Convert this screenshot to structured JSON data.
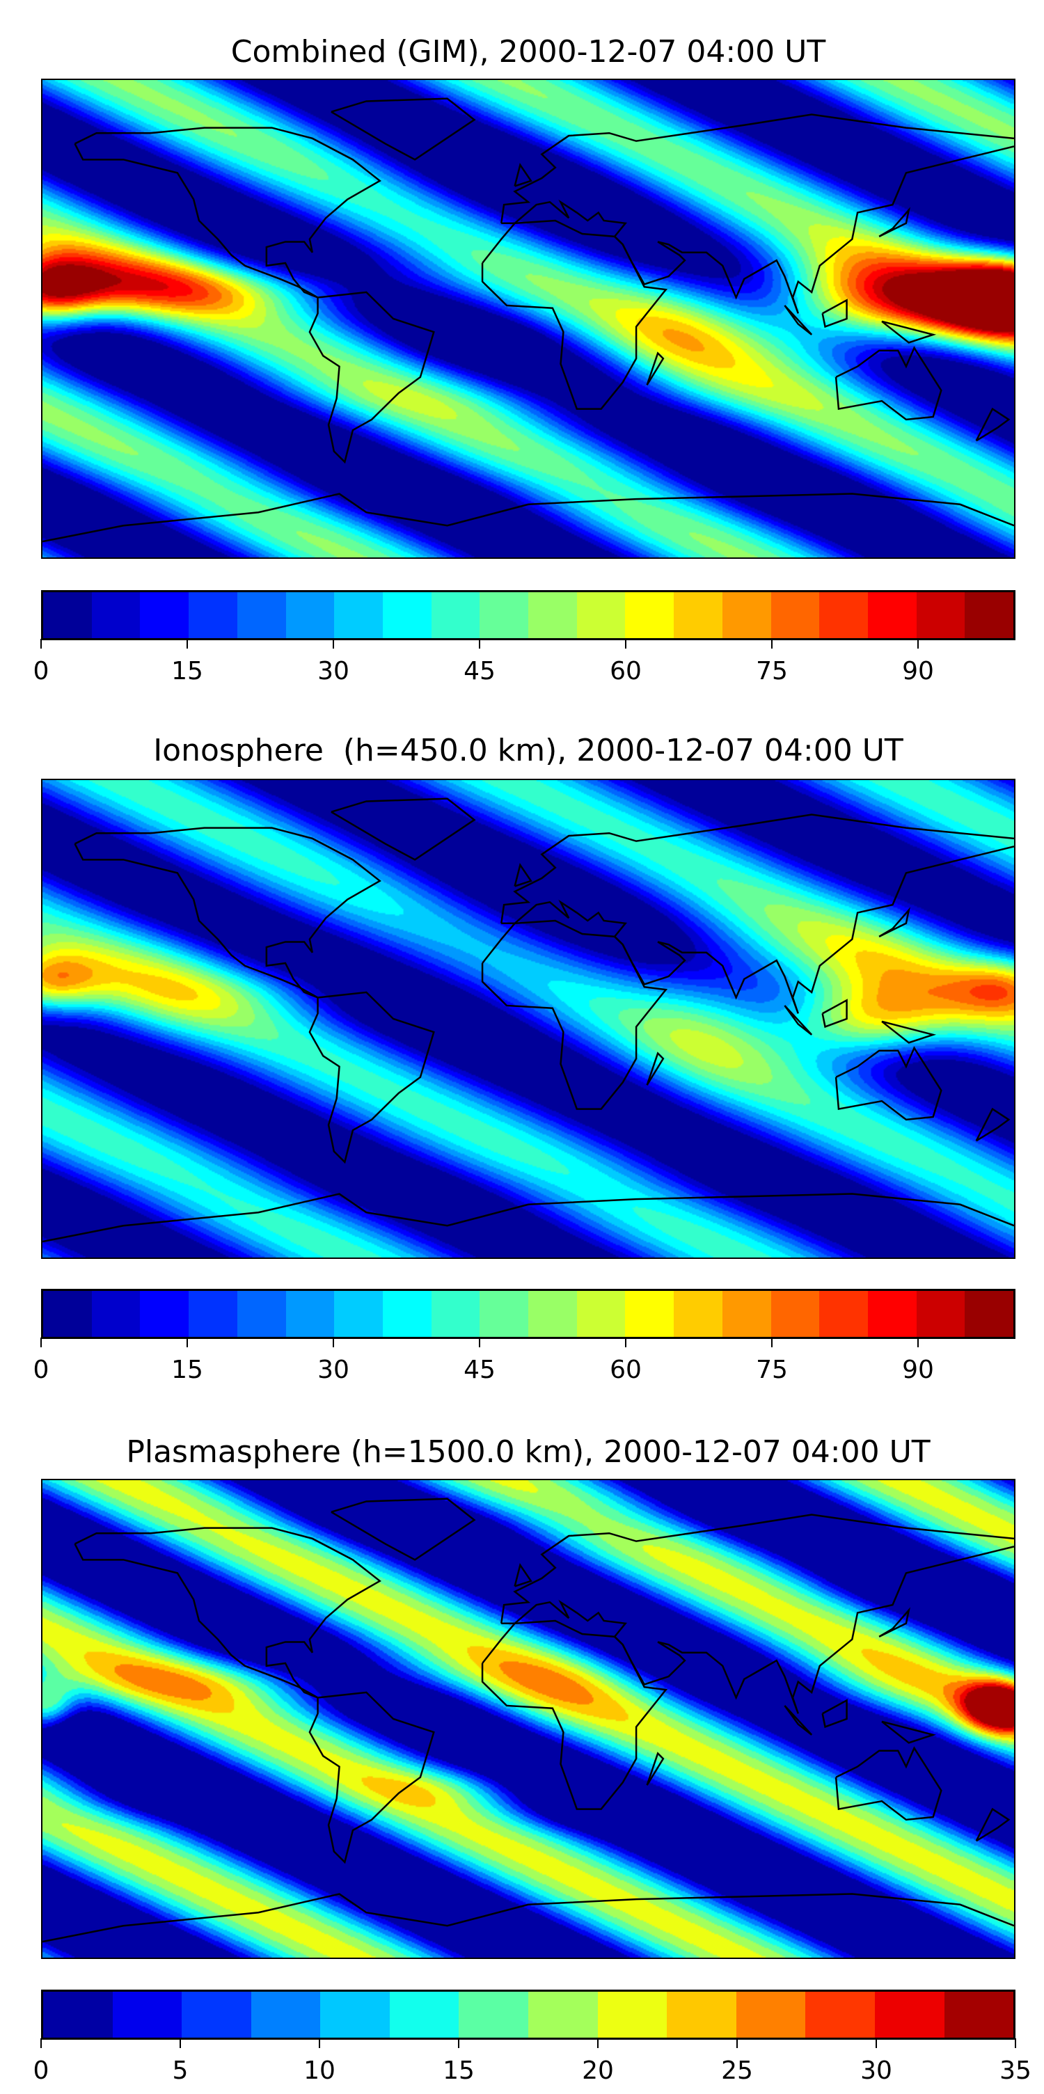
{
  "chart_data": [
    {
      "type": "heatmap",
      "title": "Combined (GIM), 2000-12-07 04:00 UT",
      "projection": "PlateCarree",
      "xlim": [
        -180,
        180
      ],
      "ylim": [
        -90,
        90
      ],
      "colormap": "jet",
      "levels": {
        "min": 0,
        "max": 100,
        "step": 5
      },
      "colorbar_ticks": [
        "0",
        "15",
        "30",
        "45",
        "60",
        "75",
        "90"
      ],
      "colorbar_tick_values": [
        0,
        15,
        30,
        45,
        60,
        75,
        90
      ],
      "field_base": 18,
      "field_components": [
        {
          "lon": -180,
          "lat": 10,
          "amp": 78,
          "slon": 22,
          "slat": 14
        },
        {
          "lon": 180,
          "lat": 10,
          "amp": 78,
          "slon": 22,
          "slat": 14
        },
        {
          "lon": 150,
          "lat": 5,
          "amp": 60,
          "slon": 40,
          "slat": 16
        },
        {
          "lon": 110,
          "lat": 5,
          "amp": 38,
          "slon": 30,
          "slat": 20
        },
        {
          "lon": -150,
          "lat": 12,
          "amp": 30,
          "slon": 40,
          "slat": 14
        },
        {
          "lon": -90,
          "lat": 12,
          "amp": 22,
          "slon": 60,
          "slat": 10
        },
        {
          "lon": 60,
          "lat": 0,
          "amp": 22,
          "slon": 30,
          "slat": 25
        },
        {
          "lon": -20,
          "lat": 45,
          "amp": -12,
          "slon": 70,
          "slat": 25
        },
        {
          "lon": -20,
          "lat": -8,
          "amp": -8,
          "slon": 30,
          "slat": 8
        },
        {
          "lon": 0,
          "lat": -30,
          "amp": 8,
          "slon": 120,
          "slat": 10
        },
        {
          "lon": 0,
          "lat": -65,
          "amp": -6,
          "slon": 200,
          "slat": 12
        }
      ]
    },
    {
      "type": "heatmap",
      "title": "Ionosphere  (h=450.0 km), 2000-12-07 04:00 UT",
      "projection": "PlateCarree",
      "xlim": [
        -180,
        180
      ],
      "ylim": [
        -90,
        90
      ],
      "colormap": "jet",
      "levels": {
        "min": 0,
        "max": 100,
        "step": 5
      },
      "colorbar_ticks": [
        "0",
        "15",
        "30",
        "45",
        "60",
        "75",
        "90"
      ],
      "colorbar_tick_values": [
        0,
        15,
        30,
        45,
        60,
        75,
        90
      ],
      "field_base": 16,
      "field_components": [
        {
          "lon": -180,
          "lat": 13,
          "amp": 52,
          "slon": 20,
          "slat": 12
        },
        {
          "lon": 180,
          "lat": 13,
          "amp": 40,
          "slon": 22,
          "slat": 12
        },
        {
          "lon": 125,
          "lat": -2,
          "amp": 50,
          "slon": 30,
          "slat": 14
        },
        {
          "lon": 120,
          "lat": 15,
          "amp": 25,
          "slon": 50,
          "slat": 25
        },
        {
          "lon": -140,
          "lat": 10,
          "amp": 22,
          "slon": 40,
          "slat": 20
        },
        {
          "lon": 70,
          "lat": 5,
          "amp": 18,
          "slon": 30,
          "slat": 30
        },
        {
          "lon": -20,
          "lat": 25,
          "amp": -12,
          "slon": 55,
          "slat": 35
        },
        {
          "lon": -90,
          "lat": 12,
          "amp": 10,
          "slon": 40,
          "slat": 10
        },
        {
          "lon": 0,
          "lat": -65,
          "amp": -4,
          "slon": 200,
          "slat": 12
        }
      ]
    },
    {
      "type": "heatmap",
      "title": "Plasmasphere (h=1500.0 km), 2000-12-07 04:00 UT",
      "projection": "PlateCarree",
      "xlim": [
        -180,
        180
      ],
      "ylim": [
        -90,
        90
      ],
      "colormap": "jet",
      "levels": {
        "min": 0,
        "max": 35,
        "step": 2.5
      },
      "colorbar_ticks": [
        "0",
        "5",
        "10",
        "15",
        "20",
        "25",
        "30",
        "35"
      ],
      "colorbar_tick_values": [
        0,
        5,
        10,
        15,
        20,
        25,
        30,
        35
      ],
      "field_base": 6,
      "field_components": [
        {
          "lon": -180,
          "lat": 5,
          "amp": 22,
          "slon": 12,
          "slat": 10
        },
        {
          "lon": 175,
          "lat": 5,
          "amp": 26,
          "slon": 14,
          "slat": 10
        },
        {
          "lon": -100,
          "lat": 15,
          "amp": 8,
          "slon": 80,
          "slat": 10
        },
        {
          "lon": 10,
          "lat": 12,
          "amp": 5,
          "slon": 30,
          "slat": 18
        },
        {
          "lon": 120,
          "lat": 10,
          "amp": 5,
          "slon": 40,
          "slat": 15
        },
        {
          "lon": -30,
          "lat": -25,
          "amp": 5,
          "slon": 30,
          "slat": 8
        },
        {
          "lon": 20,
          "lat": -35,
          "amp": -4,
          "slon": 30,
          "slat": 8
        },
        {
          "lon": -150,
          "lat": -30,
          "amp": -4,
          "slon": 30,
          "slat": 10
        },
        {
          "lon": 150,
          "lat": 50,
          "amp": -4,
          "slon": 40,
          "slat": 10
        },
        {
          "lon": 0,
          "lat": 75,
          "amp": -3,
          "slon": 100,
          "slat": 10
        }
      ]
    }
  ]
}
